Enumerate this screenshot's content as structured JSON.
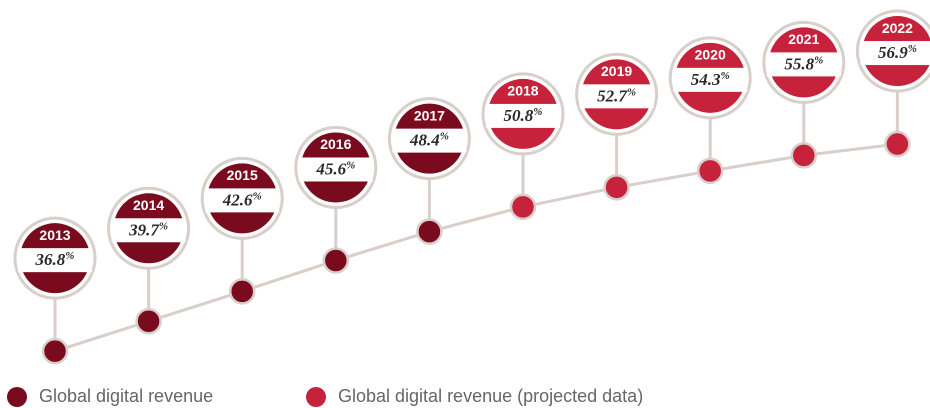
{
  "chart_data": {
    "type": "line",
    "categories": [
      "2013",
      "2014",
      "2015",
      "2016",
      "2017",
      "2018",
      "2019",
      "2020",
      "2021",
      "2022"
    ],
    "series": [
      {
        "name": "Global digital revenue",
        "color": "#7a0a1e",
        "values": [
          36.8,
          39.7,
          42.6,
          45.6,
          48.4,
          null,
          null,
          null,
          null,
          null
        ],
        "value_labels": [
          "36.8%",
          "39.7%",
          "42.6%",
          "45.6%",
          "48.4%",
          null,
          null,
          null,
          null,
          null
        ]
      },
      {
        "name": "Global digital revenue (projected data)",
        "color": "#c6223b",
        "values": [
          null,
          null,
          null,
          null,
          null,
          50.8,
          52.7,
          54.3,
          55.8,
          56.9
        ],
        "value_labels": [
          null,
          null,
          null,
          null,
          null,
          "50.8%",
          "52.7%",
          "54.3%",
          "55.8%",
          "56.9%"
        ]
      }
    ],
    "ylim": [
      34,
      67
    ]
  }
}
